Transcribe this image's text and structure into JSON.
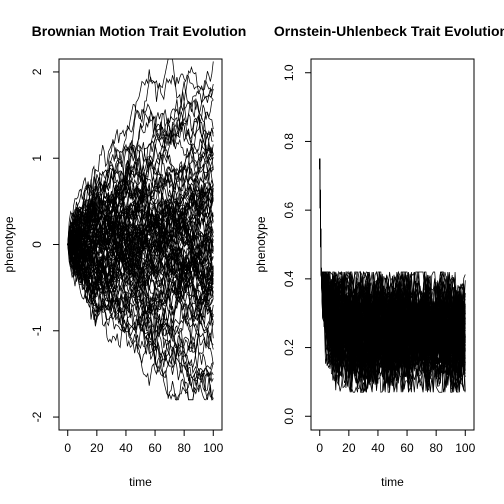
{
  "chart_data": [
    {
      "type": "line",
      "title": "Brownian Motion Trait Evolution",
      "xlabel": "time",
      "ylabel": "phenotype",
      "xlim": [
        -6,
        106
      ],
      "ylim": [
        -2.15,
        2.15
      ],
      "xticks": [
        0,
        20,
        40,
        60,
        80,
        100
      ],
      "yticks": [
        -2,
        -1,
        0,
        1,
        2
      ],
      "grid": false,
      "legend": "none",
      "process": "brownian",
      "n_series": 100,
      "x_start": 0,
      "x_end": 100,
      "start_value": 0,
      "end_range": [
        -1.8,
        2.15
      ],
      "line_color": "#000000"
    },
    {
      "type": "line",
      "title": "Ornstein-Uhlenbeck Trait Evolution",
      "xlabel": "time",
      "ylabel": "phenotype",
      "xlim": [
        -6,
        106
      ],
      "ylim": [
        -0.04,
        1.04
      ],
      "xticks": [
        0,
        20,
        40,
        60,
        80,
        100
      ],
      "yticks": [
        0.0,
        0.2,
        0.4,
        0.6,
        0.8,
        1.0
      ],
      "grid": false,
      "legend": "none",
      "process": "ornstein-uhlenbeck",
      "n_series": 100,
      "x_start": 0,
      "x_end": 100,
      "start_value": 0.75,
      "optimum": 0.25,
      "stationary_range": [
        0.1,
        0.4
      ],
      "line_color": "#000000"
    }
  ]
}
